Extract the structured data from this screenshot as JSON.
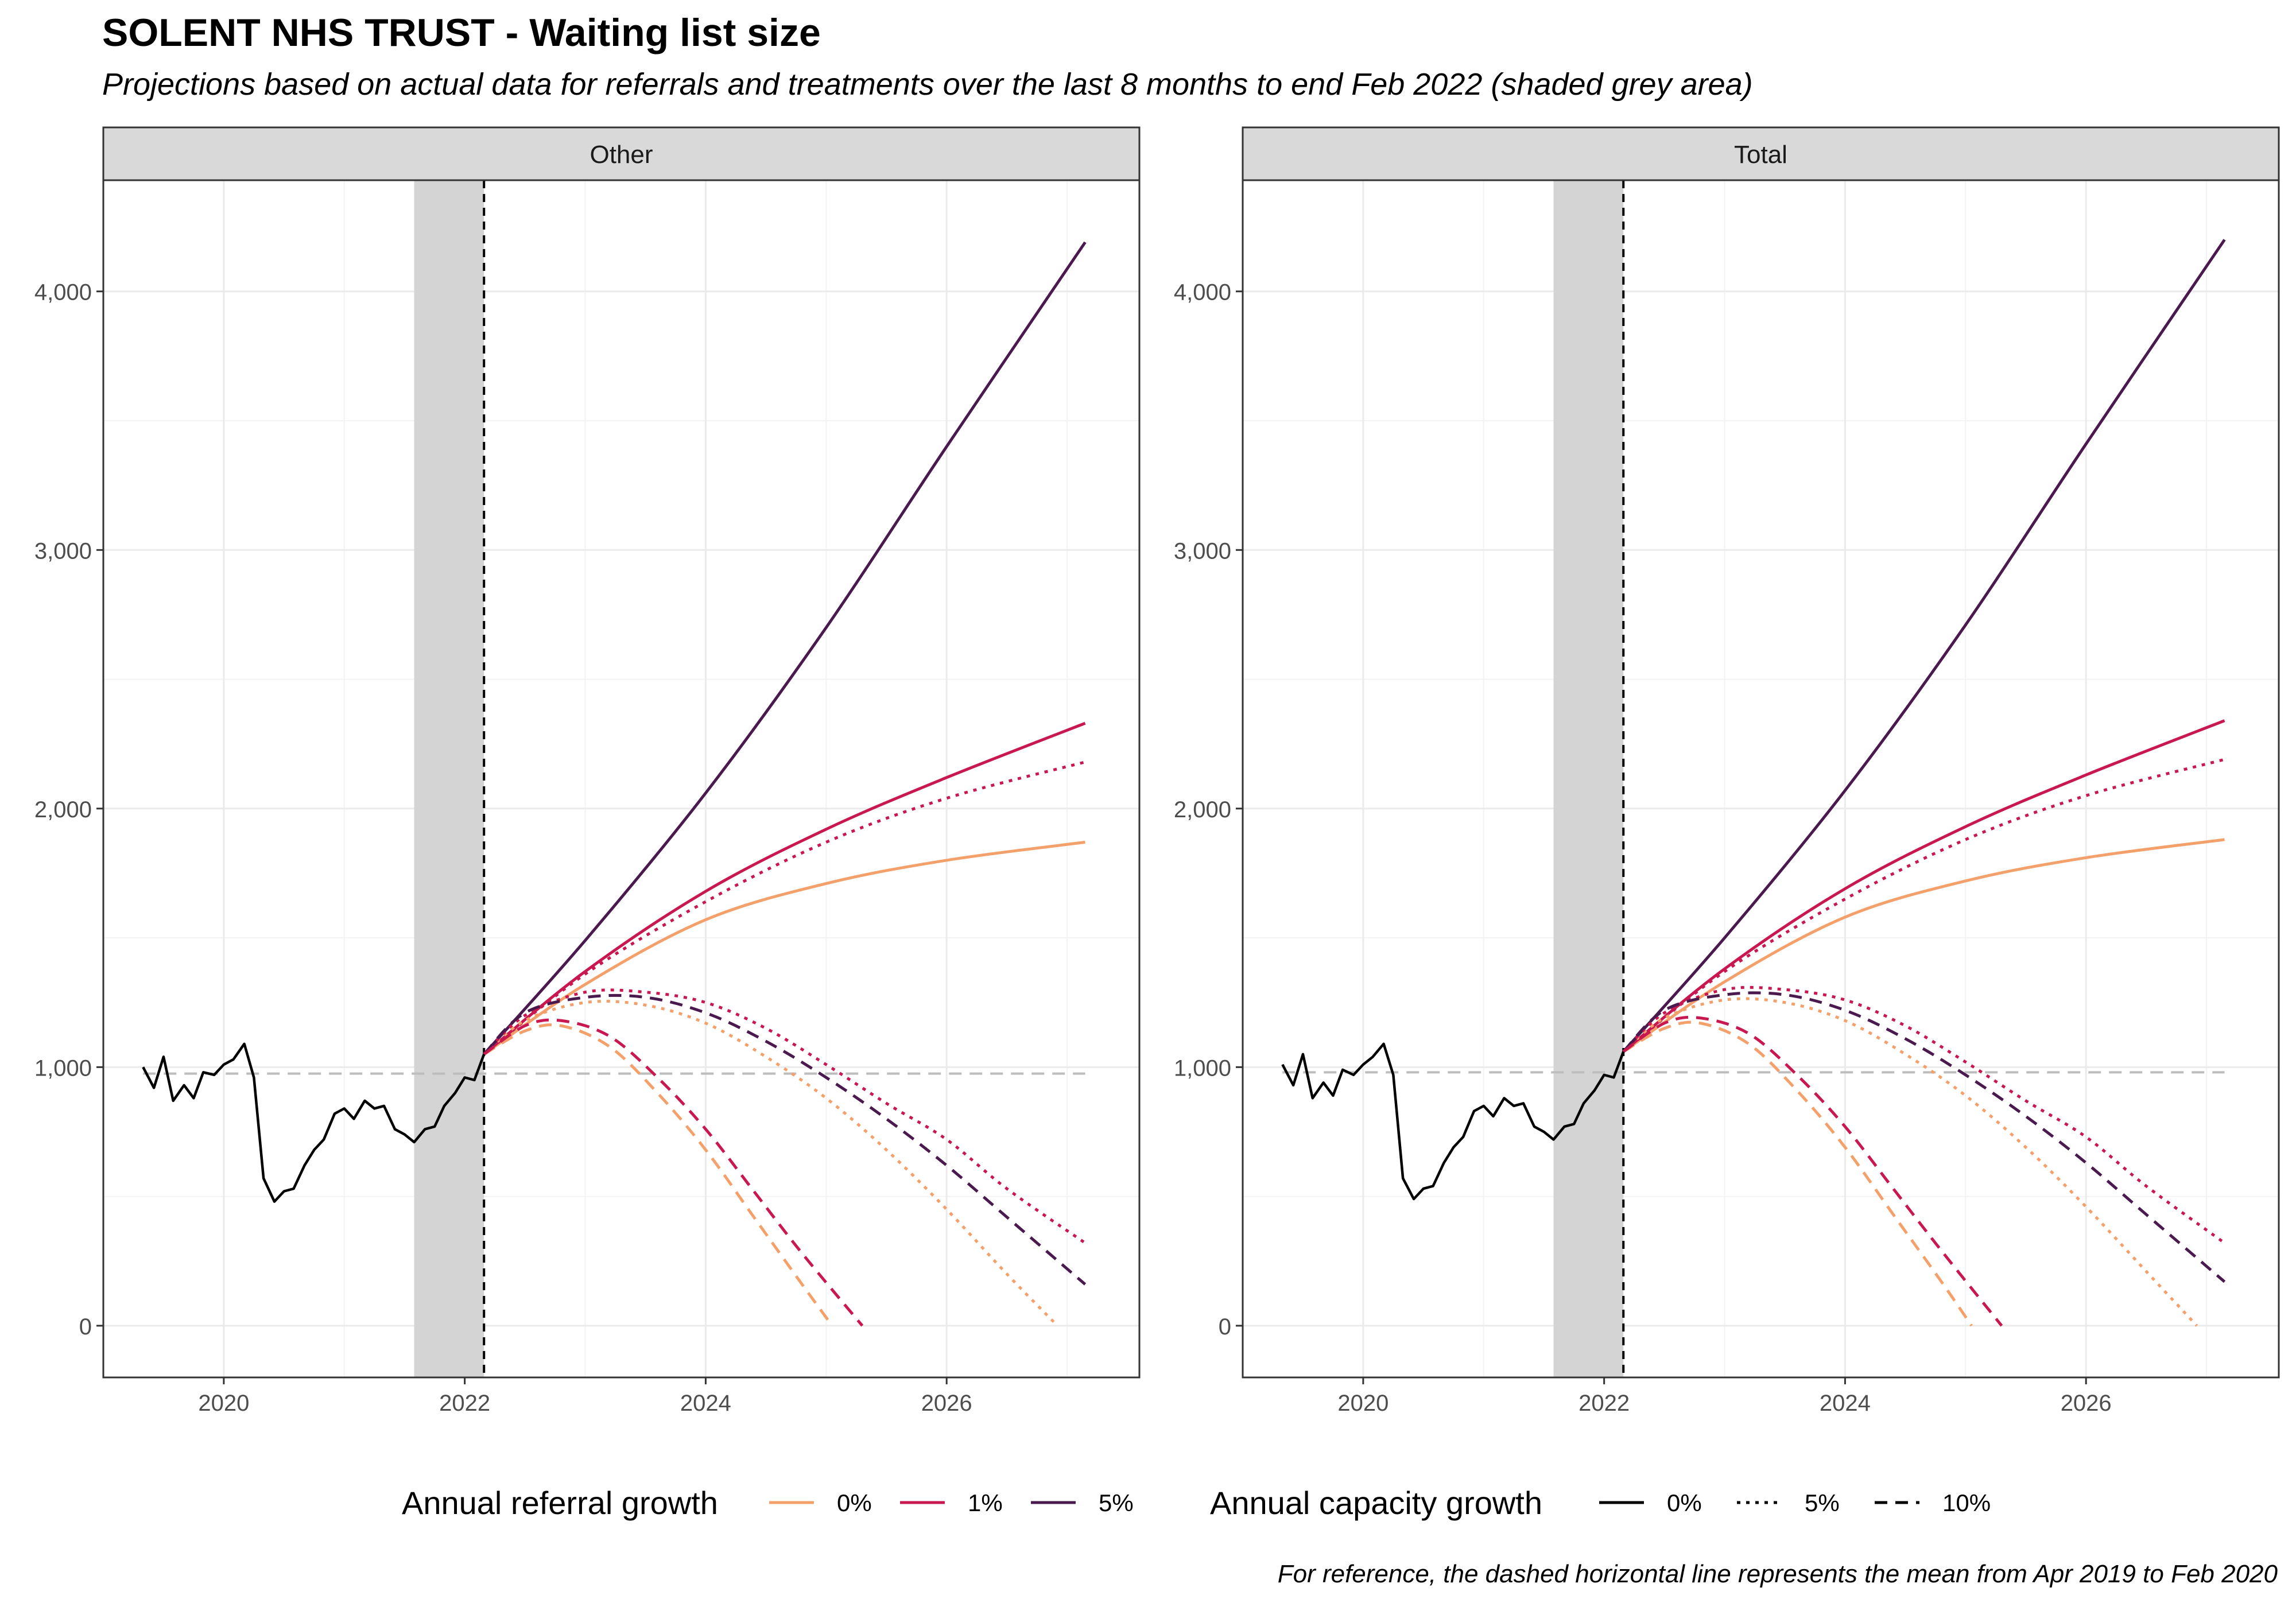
{
  "title": "SOLENT NHS TRUST - Waiting list size",
  "subtitle": "Projections based on actual data for referrals and treatments over the last 8 months to end Feb 2022 (shaded grey area)",
  "caption": "For reference, the dashed horizontal line represents the mean from Apr 2019 to Feb 2020",
  "colors": {
    "ref_0": "#f4a06b",
    "ref_1": "#c8184f",
    "ref_5": "#4a1a4e",
    "actual": "#000000",
    "shade": "#d4d4d4",
    "strip": "#d9d9d9",
    "mean_line": "#bdbdbd",
    "grid": "#ebebeb"
  },
  "chart_data": {
    "type": "line",
    "x_axis": {
      "lim": [
        2019.0,
        2027.6
      ],
      "ticks": [
        2020,
        2022,
        2024,
        2026
      ],
      "tick_labels": [
        "2020",
        "2022",
        "2024",
        "2026"
      ]
    },
    "y_axis": {
      "lim": [
        -200,
        4430
      ],
      "ticks": [
        0,
        1000,
        2000,
        3000,
        4000
      ],
      "tick_labels": [
        "0",
        "1,000",
        "2,000",
        "3,000",
        "4,000"
      ]
    },
    "shaded_period": [
      2021.58,
      2022.16
    ],
    "vline_x": 2022.16,
    "legend": {
      "position": "bottom",
      "referral_title": "Annual referral growth",
      "referral_items": [
        {
          "label": "0%",
          "color": "#f4a06b"
        },
        {
          "label": "1%",
          "color": "#c8184f"
        },
        {
          "label": "5%",
          "color": "#4a1a4e"
        }
      ],
      "capacity_title": "Annual capacity growth",
      "capacity_items": [
        {
          "label": "0%",
          "dash": "solid"
        },
        {
          "label": "5%",
          "dash": "dotted"
        },
        {
          "label": "10%",
          "dash": "dashed"
        }
      ]
    },
    "panels": [
      {
        "strip": "Other",
        "mean_line": 975,
        "mean_range": [
          2019.33,
          2027.15
        ],
        "actual": {
          "x": [
            2019.33,
            2019.42,
            2019.5,
            2019.58,
            2019.67,
            2019.75,
            2019.83,
            2019.92,
            2020.0,
            2020.08,
            2020.17,
            2020.25,
            2020.33,
            2020.42,
            2020.5,
            2020.58,
            2020.67,
            2020.75,
            2020.83,
            2020.92,
            2021.0,
            2021.08,
            2021.17,
            2021.25,
            2021.33,
            2021.42,
            2021.5,
            2021.58,
            2021.67,
            2021.75,
            2021.83,
            2021.92,
            2022.0,
            2022.08,
            2022.16
          ],
          "y": [
            1000,
            920,
            1040,
            870,
            930,
            880,
            980,
            970,
            1010,
            1030,
            1090,
            960,
            570,
            480,
            520,
            530,
            620,
            680,
            720,
            820,
            840,
            800,
            870,
            840,
            850,
            760,
            740,
            710,
            760,
            770,
            850,
            900,
            960,
            950,
            1050
          ]
        },
        "projections": [
          {
            "referral": "0%",
            "capacity": "0%",
            "x": [
              2022.16,
              2023,
              2024,
              2025,
              2026,
              2027.15
            ],
            "y": [
              1050,
              1320,
              1570,
              1710,
              1800,
              1870
            ]
          },
          {
            "referral": "1%",
            "capacity": "0%",
            "x": [
              2022.16,
              2023,
              2024,
              2025,
              2026,
              2027.15
            ],
            "y": [
              1050,
              1370,
              1680,
              1920,
              2120,
              2330
            ]
          },
          {
            "referral": "5%",
            "capacity": "0%",
            "x": [
              2022.16,
              2023,
              2024,
              2025,
              2026,
              2027.15
            ],
            "y": [
              1050,
              1490,
              2060,
              2700,
              3400,
              4190
            ]
          },
          {
            "referral": "1%",
            "capacity": "5%",
            "x": [
              2022.16,
              2023,
              2024,
              2025,
              2026,
              2027.15
            ],
            "y": [
              1050,
              1360,
              1640,
              1870,
              2040,
              2180
            ]
          },
          {
            "referral": "0%",
            "capacity": "5%",
            "x": [
              2022.16,
              2022.5,
              2023,
              2023.5,
              2024,
              2024.5,
              2025,
              2025.5,
              2026,
              2026.5,
              2026.92
            ],
            "y": [
              1050,
              1180,
              1250,
              1240,
              1170,
              1040,
              880,
              680,
              450,
              200,
              0
            ]
          },
          {
            "referral": "1%",
            "capacity": "5%",
            "x": [
              2022.16,
              2022.5,
              2023,
              2023.5,
              2024,
              2024.5,
              2025,
              2025.5,
              2026,
              2026.5,
              2027.15
            ],
            "y": [
              1050,
              1200,
              1290,
              1290,
              1250,
              1150,
              1010,
              860,
              720,
              530,
              320
            ]
          },
          {
            "referral": "5%",
            "capacity": "10%",
            "x": [
              2022.16,
              2022.5,
              2023,
              2023.5,
              2024,
              2024.5,
              2025,
              2025.5,
              2026,
              2026.5,
              2027.15
            ],
            "y": [
              1050,
              1210,
              1270,
              1270,
              1210,
              1100,
              960,
              800,
              620,
              420,
              160
            ]
          },
          {
            "referral": "0%",
            "capacity": "10%",
            "x": [
              2022.16,
              2022.5,
              2022.8,
              2023.2,
              2023.6,
              2024.0,
              2024.4,
              2024.8,
              2025.05
            ],
            "y": [
              1050,
              1140,
              1160,
              1080,
              900,
              680,
              420,
              160,
              0
            ]
          },
          {
            "referral": "1%",
            "capacity": "10%",
            "x": [
              2022.16,
              2022.5,
              2022.8,
              2023.2,
              2023.6,
              2024.0,
              2024.4,
              2024.8,
              2025.3
            ],
            "y": [
              1050,
              1160,
              1180,
              1120,
              960,
              760,
              520,
              280,
              0
            ]
          }
        ]
      },
      {
        "strip": "Total",
        "mean_line": 980,
        "mean_range": [
          2019.33,
          2027.15
        ],
        "actual": {
          "x": [
            2019.33,
            2019.42,
            2019.5,
            2019.58,
            2019.67,
            2019.75,
            2019.83,
            2019.92,
            2020.0,
            2020.08,
            2020.17,
            2020.25,
            2020.33,
            2020.42,
            2020.5,
            2020.58,
            2020.67,
            2020.75,
            2020.83,
            2020.92,
            2021.0,
            2021.08,
            2021.17,
            2021.25,
            2021.33,
            2021.42,
            2021.5,
            2021.58,
            2021.67,
            2021.75,
            2021.83,
            2021.92,
            2022.0,
            2022.08,
            2022.16
          ],
          "y": [
            1010,
            930,
            1050,
            880,
            940,
            890,
            990,
            970,
            1010,
            1040,
            1090,
            970,
            570,
            490,
            530,
            540,
            630,
            690,
            730,
            830,
            850,
            810,
            880,
            850,
            860,
            770,
            750,
            720,
            770,
            780,
            860,
            910,
            970,
            960,
            1060
          ]
        },
        "projections": [
          {
            "referral": "0%",
            "capacity": "0%",
            "x": [
              2022.16,
              2023,
              2024,
              2025,
              2026,
              2027.15
            ],
            "y": [
              1060,
              1330,
              1580,
              1720,
              1810,
              1880
            ]
          },
          {
            "referral": "1%",
            "capacity": "0%",
            "x": [
              2022.16,
              2023,
              2024,
              2025,
              2026,
              2027.15
            ],
            "y": [
              1060,
              1380,
              1690,
              1930,
              2130,
              2340
            ]
          },
          {
            "referral": "5%",
            "capacity": "0%",
            "x": [
              2022.16,
              2023,
              2024,
              2025,
              2026,
              2027.15
            ],
            "y": [
              1060,
              1500,
              2070,
              2710,
              3410,
              4200
            ]
          },
          {
            "referral": "1%",
            "capacity": "5%",
            "x": [
              2022.16,
              2023,
              2024,
              2025,
              2026,
              2027.15
            ],
            "y": [
              1060,
              1370,
              1650,
              1880,
              2050,
              2190
            ]
          },
          {
            "referral": "0%",
            "capacity": "5%",
            "x": [
              2022.16,
              2022.5,
              2023,
              2023.5,
              2024,
              2024.5,
              2025,
              2025.5,
              2026,
              2026.5,
              2026.92
            ],
            "y": [
              1060,
              1190,
              1260,
              1250,
              1180,
              1050,
              890,
              690,
              460,
              210,
              0
            ]
          },
          {
            "referral": "1%",
            "capacity": "5%",
            "x": [
              2022.16,
              2022.5,
              2023,
              2023.5,
              2024,
              2024.5,
              2025,
              2025.5,
              2026,
              2026.5,
              2027.15
            ],
            "y": [
              1060,
              1210,
              1300,
              1300,
              1260,
              1160,
              1020,
              870,
              730,
              540,
              320
            ]
          },
          {
            "referral": "5%",
            "capacity": "10%",
            "x": [
              2022.16,
              2022.5,
              2023,
              2023.5,
              2024,
              2024.5,
              2025,
              2025.5,
              2026,
              2026.5,
              2027.15
            ],
            "y": [
              1060,
              1220,
              1280,
              1280,
              1220,
              1110,
              970,
              810,
              630,
              430,
              170
            ]
          },
          {
            "referral": "0%",
            "capacity": "10%",
            "x": [
              2022.16,
              2022.5,
              2022.8,
              2023.2,
              2023.6,
              2024.0,
              2024.4,
              2024.8,
              2025.05
            ],
            "y": [
              1060,
              1150,
              1170,
              1090,
              910,
              690,
              430,
              170,
              0
            ]
          },
          {
            "referral": "1%",
            "capacity": "10%",
            "x": [
              2022.16,
              2022.5,
              2022.8,
              2023.2,
              2023.6,
              2024.0,
              2024.4,
              2024.8,
              2025.3
            ],
            "y": [
              1060,
              1170,
              1190,
              1130,
              970,
              770,
              530,
              290,
              0
            ]
          }
        ]
      }
    ]
  }
}
